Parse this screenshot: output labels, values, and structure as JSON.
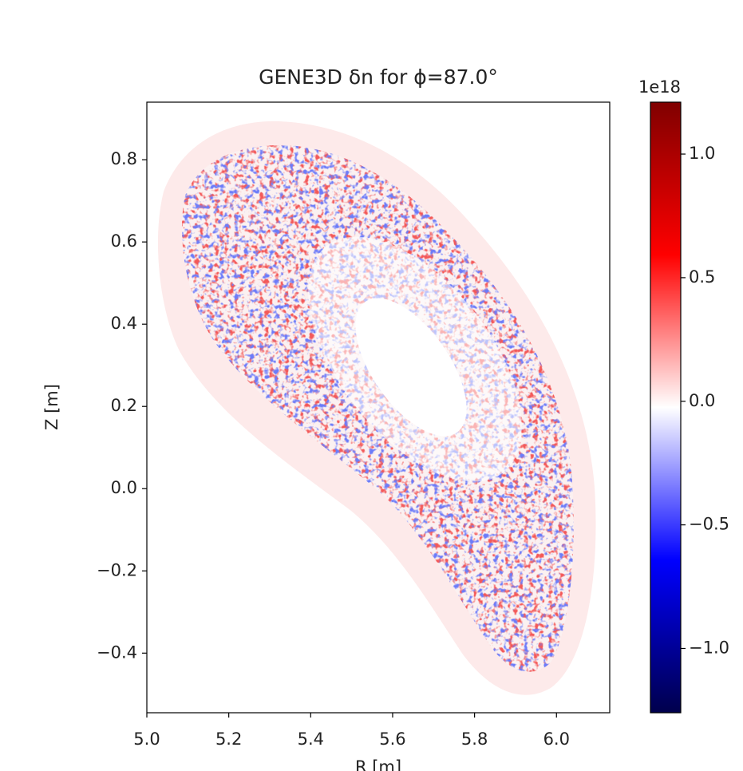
{
  "chart_data": {
    "type": "pcolormesh",
    "title": "GENE3D δn for ϕ=87.0°",
    "x_label": "R [m]",
    "y_label": "Z [m]",
    "xlim": [
      5.0,
      6.13
    ],
    "ylim": [
      -0.545,
      0.94
    ],
    "xticks": [
      {
        "value": 5.0,
        "label": "5.0"
      },
      5.2,
      5.4,
      5.6,
      5.8,
      {
        "value": 6.0,
        "label": "6.0"
      }
    ],
    "yticks": [
      {
        "value": -0.4,
        "label": "−0.4"
      },
      {
        "value": -0.2,
        "label": "−0.2"
      },
      {
        "value": 0.0,
        "label": "0.0"
      },
      0.2,
      0.4,
      0.6,
      0.8
    ],
    "colormap": "seismic",
    "colorbar": {
      "lim": [
        -1.26,
        1.21
      ],
      "offset_label": "1e18",
      "ticks": [
        {
          "value": -1.0,
          "label": "−1.0"
        },
        {
          "value": -0.5,
          "label": "−0.5"
        },
        {
          "value": 0.0,
          "label": "0.0"
        },
        0.5,
        {
          "value": 1.0,
          "label": "1.0"
        }
      ]
    }
  }
}
